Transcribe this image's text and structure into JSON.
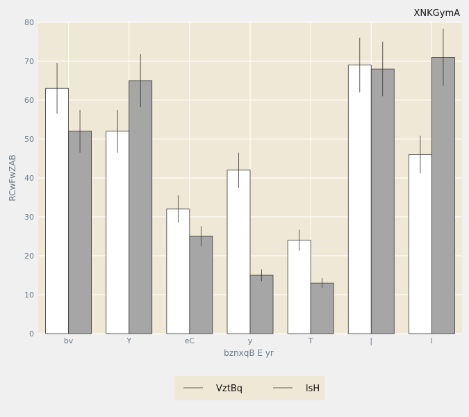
{
  "chart_data": {
    "type": "bar",
    "title": "XNKGymA",
    "xlabel": "bznxqB E yr",
    "ylabel": "RCwFwZAB",
    "categories": [
      "bv",
      "Y",
      "eC",
      "y",
      "T",
      "|",
      "l"
    ],
    "ylim": [
      0,
      80
    ],
    "yticks": [
      0,
      10,
      20,
      30,
      40,
      50,
      60,
      70,
      80
    ],
    "grid": true,
    "legend_position": "bottom-center",
    "series": [
      {
        "name": "VztBq",
        "color": "#ffffff",
        "values": [
          63,
          52,
          32,
          42,
          24,
          69,
          46
        ],
        "errors": [
          6.5,
          5.5,
          3.5,
          4.5,
          2.7,
          7,
          4.8
        ]
      },
      {
        "name": "lsH",
        "color": "#a6a6a6",
        "values": [
          52,
          65,
          25,
          15,
          13,
          68,
          71
        ],
        "errors": [
          5.5,
          6.8,
          2.6,
          1.5,
          1.3,
          7,
          7.3
        ]
      }
    ],
    "colors": {
      "plot_background": "#f0e8d6",
      "page_background": "#f0f0f0",
      "grid": "#ffffff",
      "bar_edge": "#333333",
      "error_bar": "#333333",
      "tick_text": "#6b7a86"
    }
  }
}
